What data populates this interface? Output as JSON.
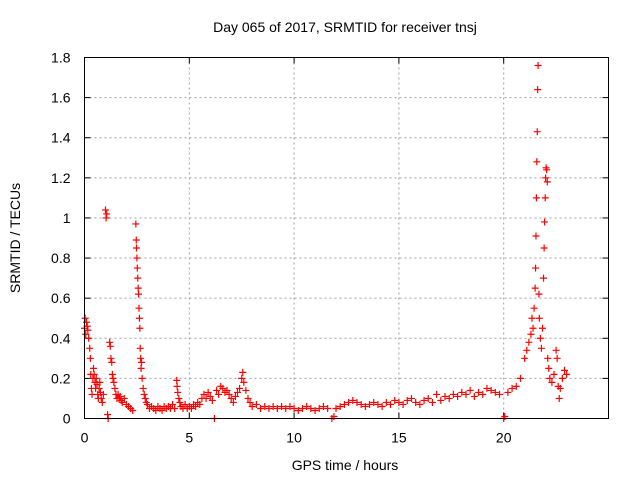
{
  "chart_data": {
    "type": "scatter",
    "title": "Day 065 of 2017, SRMTID for receiver tnsj",
    "xlabel": "GPS time / hours",
    "ylabel": "SRMTID / TECUs",
    "xlim": [
      0,
      25
    ],
    "ylim": [
      0,
      1.8
    ],
    "xticks": [
      0,
      5,
      10,
      15,
      20
    ],
    "xtick_labels": [
      "0",
      "5",
      "10",
      "15",
      "20"
    ],
    "yticks": [
      0,
      0.2,
      0.4,
      0.6,
      0.8,
      1.0,
      1.2,
      1.4,
      1.6,
      1.8
    ],
    "ytick_labels": [
      "0",
      "0.2",
      "0.4",
      "0.6",
      "0.8",
      "1",
      "1.2",
      "1.4",
      "1.6",
      "1.8"
    ],
    "grid": true,
    "marker": "+",
    "color": "#ff0000",
    "series": [
      {
        "name": "SRMTID",
        "points": [
          [
            0.0,
            0.45
          ],
          [
            0.03,
            0.5
          ],
          [
            0.06,
            0.42
          ],
          [
            0.1,
            0.48
          ],
          [
            0.13,
            0.46
          ],
          [
            0.16,
            0.44
          ],
          [
            0.2,
            0.4
          ],
          [
            0.25,
            0.35
          ],
          [
            0.28,
            0.3
          ],
          [
            0.3,
            0.22
          ],
          [
            0.33,
            0.15
          ],
          [
            0.36,
            0.12
          ],
          [
            0.4,
            0.2
          ],
          [
            0.43,
            0.25
          ],
          [
            0.46,
            0.22
          ],
          [
            0.5,
            0.18
          ],
          [
            0.53,
            0.15
          ],
          [
            0.56,
            0.2
          ],
          [
            0.6,
            0.17
          ],
          [
            0.63,
            0.12
          ],
          [
            0.66,
            0.1
          ],
          [
            0.7,
            0.15
          ],
          [
            0.73,
            0.18
          ],
          [
            0.76,
            0.13
          ],
          [
            0.8,
            0.1
          ],
          [
            0.85,
            0.08
          ],
          [
            0.9,
            0.12
          ],
          [
            1.0,
            1.04
          ],
          [
            1.03,
            1.0
          ],
          [
            1.06,
            1.02
          ],
          [
            1.1,
            0.02
          ],
          [
            1.13,
            0.0
          ],
          [
            1.2,
            0.38
          ],
          [
            1.23,
            0.36
          ],
          [
            1.26,
            0.3
          ],
          [
            1.3,
            0.28
          ],
          [
            1.33,
            0.22
          ],
          [
            1.36,
            0.2
          ],
          [
            1.4,
            0.18
          ],
          [
            1.45,
            0.15
          ],
          [
            1.5,
            0.12
          ],
          [
            1.55,
            0.1
          ],
          [
            1.6,
            0.12
          ],
          [
            1.65,
            0.1
          ],
          [
            1.7,
            0.11
          ],
          [
            1.75,
            0.09
          ],
          [
            1.8,
            0.08
          ],
          [
            1.9,
            0.1
          ],
          [
            2.0,
            0.07
          ],
          [
            2.1,
            0.06
          ],
          [
            2.2,
            0.05
          ],
          [
            2.3,
            0.04
          ],
          [
            2.45,
            0.97
          ],
          [
            2.47,
            0.89
          ],
          [
            2.48,
            0.85
          ],
          [
            2.5,
            0.8
          ],
          [
            2.52,
            0.75
          ],
          [
            2.54,
            0.7
          ],
          [
            2.56,
            0.65
          ],
          [
            2.58,
            0.62
          ],
          [
            2.6,
            0.55
          ],
          [
            2.62,
            0.5
          ],
          [
            2.64,
            0.45
          ],
          [
            2.66,
            0.35
          ],
          [
            2.68,
            0.3
          ],
          [
            2.7,
            0.25
          ],
          [
            2.72,
            0.28
          ],
          [
            2.75,
            0.2
          ],
          [
            2.8,
            0.15
          ],
          [
            2.85,
            0.12
          ],
          [
            2.9,
            0.1
          ],
          [
            2.95,
            0.08
          ],
          [
            3.0,
            0.07
          ],
          [
            3.1,
            0.05
          ],
          [
            3.2,
            0.06
          ],
          [
            3.3,
            0.05
          ],
          [
            3.4,
            0.04
          ],
          [
            3.5,
            0.06
          ],
          [
            3.6,
            0.05
          ],
          [
            3.7,
            0.04
          ],
          [
            3.8,
            0.06
          ],
          [
            3.9,
            0.05
          ],
          [
            4.0,
            0.06
          ],
          [
            4.1,
            0.05
          ],
          [
            4.2,
            0.07
          ],
          [
            4.3,
            0.05
          ],
          [
            4.4,
            0.19
          ],
          [
            4.42,
            0.16
          ],
          [
            4.45,
            0.13
          ],
          [
            4.5,
            0.1
          ],
          [
            4.55,
            0.08
          ],
          [
            4.6,
            0.06
          ],
          [
            4.7,
            0.05
          ],
          [
            4.8,
            0.07
          ],
          [
            4.9,
            0.05
          ],
          [
            5.0,
            0.06
          ],
          [
            5.1,
            0.05
          ],
          [
            5.2,
            0.07
          ],
          [
            5.3,
            0.06
          ],
          [
            5.4,
            0.08
          ],
          [
            5.5,
            0.07
          ],
          [
            5.6,
            0.1
          ],
          [
            5.7,
            0.12
          ],
          [
            5.8,
            0.1
          ],
          [
            5.9,
            0.13
          ],
          [
            6.0,
            0.11
          ],
          [
            6.1,
            0.09
          ],
          [
            6.2,
            0.0
          ],
          [
            6.3,
            0.14
          ],
          [
            6.4,
            0.12
          ],
          [
            6.5,
            0.16
          ],
          [
            6.6,
            0.15
          ],
          [
            6.7,
            0.13
          ],
          [
            6.8,
            0.14
          ],
          [
            6.9,
            0.12
          ],
          [
            7.0,
            0.1
          ],
          [
            7.1,
            0.08
          ],
          [
            7.2,
            0.11
          ],
          [
            7.3,
            0.13
          ],
          [
            7.4,
            0.15
          ],
          [
            7.5,
            0.2
          ],
          [
            7.55,
            0.23
          ],
          [
            7.6,
            0.18
          ],
          [
            7.7,
            0.14
          ],
          [
            7.8,
            0.1
          ],
          [
            7.9,
            0.08
          ],
          [
            8.0,
            0.06
          ],
          [
            8.2,
            0.07
          ],
          [
            8.4,
            0.05
          ],
          [
            8.6,
            0.06
          ],
          [
            8.8,
            0.05
          ],
          [
            9.0,
            0.06
          ],
          [
            9.2,
            0.05
          ],
          [
            9.4,
            0.06
          ],
          [
            9.6,
            0.05
          ],
          [
            9.8,
            0.06
          ],
          [
            10.0,
            0.05
          ],
          [
            10.2,
            0.04
          ],
          [
            10.4,
            0.05
          ],
          [
            10.6,
            0.06
          ],
          [
            10.8,
            0.05
          ],
          [
            11.0,
            0.04
          ],
          [
            11.2,
            0.05
          ],
          [
            11.4,
            0.06
          ],
          [
            11.6,
            0.05
          ],
          [
            11.8,
            0.0
          ],
          [
            11.9,
            0.01
          ],
          [
            12.0,
            0.05
          ],
          [
            12.2,
            0.06
          ],
          [
            12.4,
            0.07
          ],
          [
            12.6,
            0.08
          ],
          [
            12.8,
            0.09
          ],
          [
            13.0,
            0.08
          ],
          [
            13.2,
            0.07
          ],
          [
            13.4,
            0.06
          ],
          [
            13.6,
            0.07
          ],
          [
            13.8,
            0.08
          ],
          [
            14.0,
            0.07
          ],
          [
            14.2,
            0.06
          ],
          [
            14.4,
            0.08
          ],
          [
            14.6,
            0.07
          ],
          [
            14.8,
            0.09
          ],
          [
            15.0,
            0.08
          ],
          [
            15.2,
            0.07
          ],
          [
            15.4,
            0.09
          ],
          [
            15.6,
            0.1
          ],
          [
            15.8,
            0.08
          ],
          [
            16.0,
            0.07
          ],
          [
            16.2,
            0.09
          ],
          [
            16.4,
            0.1
          ],
          [
            16.6,
            0.08
          ],
          [
            16.8,
            0.12
          ],
          [
            17.0,
            0.09
          ],
          [
            17.2,
            0.11
          ],
          [
            17.4,
            0.1
          ],
          [
            17.6,
            0.12
          ],
          [
            17.8,
            0.11
          ],
          [
            18.0,
            0.13
          ],
          [
            18.2,
            0.12
          ],
          [
            18.4,
            0.14
          ],
          [
            18.6,
            0.11
          ],
          [
            18.8,
            0.13
          ],
          [
            19.0,
            0.12
          ],
          [
            19.2,
            0.15
          ],
          [
            19.4,
            0.14
          ],
          [
            19.6,
            0.13
          ],
          [
            19.8,
            0.12
          ],
          [
            20.0,
            0.0
          ],
          [
            20.05,
            0.01
          ],
          [
            20.2,
            0.13
          ],
          [
            20.4,
            0.15
          ],
          [
            20.6,
            0.16
          ],
          [
            20.8,
            0.2
          ],
          [
            21.0,
            0.3
          ],
          [
            21.1,
            0.34
          ],
          [
            21.2,
            0.38
          ],
          [
            21.3,
            0.42
          ],
          [
            21.35,
            0.5
          ],
          [
            21.4,
            0.45
          ],
          [
            21.45,
            0.55
          ],
          [
            21.5,
            0.65
          ],
          [
            21.52,
            0.75
          ],
          [
            21.54,
            0.91
          ],
          [
            21.56,
            1.1
          ],
          [
            21.58,
            1.28
          ],
          [
            21.6,
            1.43
          ],
          [
            21.62,
            1.64
          ],
          [
            21.64,
            1.76
          ],
          [
            21.68,
            0.62
          ],
          [
            21.7,
            0.5
          ],
          [
            21.75,
            0.4
          ],
          [
            21.8,
            0.35
          ],
          [
            21.85,
            0.45
          ],
          [
            21.9,
            0.7
          ],
          [
            21.93,
            0.85
          ],
          [
            21.95,
            0.98
          ],
          [
            21.98,
            1.1
          ],
          [
            22.0,
            1.2
          ],
          [
            22.02,
            1.25
          ],
          [
            22.05,
            1.24
          ],
          [
            22.08,
            1.18
          ],
          [
            22.1,
            0.3
          ],
          [
            22.15,
            0.25
          ],
          [
            22.2,
            0.2
          ],
          [
            22.3,
            0.18
          ],
          [
            22.4,
            0.22
          ],
          [
            22.5,
            0.34
          ],
          [
            22.55,
            0.3
          ],
          [
            22.6,
            0.16
          ],
          [
            22.65,
            0.1
          ],
          [
            22.7,
            0.15
          ],
          [
            22.8,
            0.2
          ],
          [
            22.9,
            0.24
          ],
          [
            23.0,
            0.22
          ]
        ]
      }
    ]
  }
}
